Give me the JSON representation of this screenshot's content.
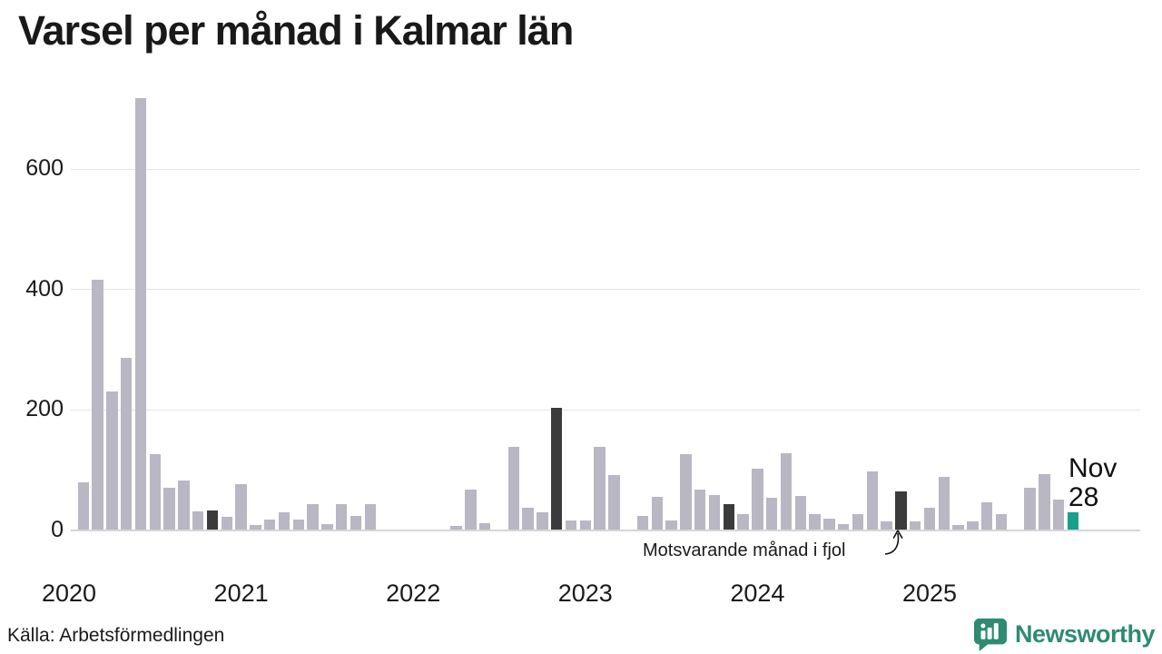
{
  "title": "Varsel per månad i Kalmar län",
  "source": "Källa: Arbetsförmedlingen",
  "brand": {
    "name": "Newsworthy",
    "logo_icon": "speech-bubble-bar-chart"
  },
  "annotation": {
    "last_year_label": "Motsvarande månad i fjol",
    "current_month_label": "Nov",
    "current_value_label": "28"
  },
  "colors": {
    "bar": "#b9b7c3",
    "bar_last_year": "#3b3b3b",
    "bar_current": "#17a08c",
    "grid": "#e4e4e4",
    "axis_line": "#d6d6d6",
    "text": "#1a1a1a",
    "brand_teal": "#2e8b72"
  },
  "chart_data": {
    "type": "bar",
    "title": "Varsel per månad i Kalmar län",
    "xlabel": "",
    "ylabel": "",
    "ylim": [
      0,
      730
    ],
    "yticks": [
      0,
      200,
      400,
      600
    ],
    "grid": true,
    "year_labels": [
      "2020",
      "2021",
      "2022",
      "2023",
      "2024",
      "2025"
    ],
    "months": [
      {
        "month": "2020-01",
        "value": 0,
        "type": "normal"
      },
      {
        "month": "2020-02",
        "value": 78,
        "type": "normal"
      },
      {
        "month": "2020-03",
        "value": 416,
        "type": "normal"
      },
      {
        "month": "2020-04",
        "value": 230,
        "type": "normal"
      },
      {
        "month": "2020-05",
        "value": 285,
        "type": "normal"
      },
      {
        "month": "2020-06",
        "value": 718,
        "type": "normal"
      },
      {
        "month": "2020-07",
        "value": 125,
        "type": "normal"
      },
      {
        "month": "2020-08",
        "value": 70,
        "type": "normal"
      },
      {
        "month": "2020-09",
        "value": 82,
        "type": "normal"
      },
      {
        "month": "2020-10",
        "value": 30,
        "type": "normal"
      },
      {
        "month": "2020-11",
        "value": 32,
        "type": "last_year"
      },
      {
        "month": "2020-12",
        "value": 21,
        "type": "normal"
      },
      {
        "month": "2021-01",
        "value": 75,
        "type": "normal"
      },
      {
        "month": "2021-02",
        "value": 8,
        "type": "normal"
      },
      {
        "month": "2021-03",
        "value": 16,
        "type": "normal"
      },
      {
        "month": "2021-04",
        "value": 28,
        "type": "normal"
      },
      {
        "month": "2021-05",
        "value": 16,
        "type": "normal"
      },
      {
        "month": "2021-06",
        "value": 42,
        "type": "normal"
      },
      {
        "month": "2021-07",
        "value": 9,
        "type": "normal"
      },
      {
        "month": "2021-08",
        "value": 42,
        "type": "normal"
      },
      {
        "month": "2021-09",
        "value": 23,
        "type": "normal"
      },
      {
        "month": "2021-10",
        "value": 43,
        "type": "normal"
      },
      {
        "month": "2021-11",
        "value": 0,
        "type": "last_year"
      },
      {
        "month": "2021-12",
        "value": 0,
        "type": "normal"
      },
      {
        "month": "2022-01",
        "value": 0,
        "type": "normal"
      },
      {
        "month": "2022-02",
        "value": 0,
        "type": "normal"
      },
      {
        "month": "2022-03",
        "value": 0,
        "type": "normal"
      },
      {
        "month": "2022-04",
        "value": 6,
        "type": "normal"
      },
      {
        "month": "2022-05",
        "value": 66,
        "type": "normal"
      },
      {
        "month": "2022-06",
        "value": 10,
        "type": "normal"
      },
      {
        "month": "2022-07",
        "value": 0,
        "type": "normal"
      },
      {
        "month": "2022-08",
        "value": 138,
        "type": "normal"
      },
      {
        "month": "2022-09",
        "value": 36,
        "type": "normal"
      },
      {
        "month": "2022-10",
        "value": 29,
        "type": "normal"
      },
      {
        "month": "2022-11",
        "value": 202,
        "type": "last_year"
      },
      {
        "month": "2022-12",
        "value": 15,
        "type": "normal"
      },
      {
        "month": "2023-01",
        "value": 15,
        "type": "normal"
      },
      {
        "month": "2023-02",
        "value": 137,
        "type": "normal"
      },
      {
        "month": "2023-03",
        "value": 90,
        "type": "normal"
      },
      {
        "month": "2023-04",
        "value": 0,
        "type": "normal"
      },
      {
        "month": "2023-05",
        "value": 23,
        "type": "normal"
      },
      {
        "month": "2023-06",
        "value": 54,
        "type": "normal"
      },
      {
        "month": "2023-07",
        "value": 15,
        "type": "normal"
      },
      {
        "month": "2023-08",
        "value": 126,
        "type": "normal"
      },
      {
        "month": "2023-09",
        "value": 66,
        "type": "normal"
      },
      {
        "month": "2023-10",
        "value": 58,
        "type": "normal"
      },
      {
        "month": "2023-11",
        "value": 43,
        "type": "last_year"
      },
      {
        "month": "2023-12",
        "value": 26,
        "type": "normal"
      },
      {
        "month": "2024-01",
        "value": 101,
        "type": "normal"
      },
      {
        "month": "2024-02",
        "value": 53,
        "type": "normal"
      },
      {
        "month": "2024-03",
        "value": 127,
        "type": "normal"
      },
      {
        "month": "2024-04",
        "value": 56,
        "type": "normal"
      },
      {
        "month": "2024-05",
        "value": 25,
        "type": "normal"
      },
      {
        "month": "2024-06",
        "value": 18,
        "type": "normal"
      },
      {
        "month": "2024-07",
        "value": 9,
        "type": "normal"
      },
      {
        "month": "2024-08",
        "value": 26,
        "type": "normal"
      },
      {
        "month": "2024-09",
        "value": 96,
        "type": "normal"
      },
      {
        "month": "2024-10",
        "value": 14,
        "type": "normal"
      },
      {
        "month": "2024-11",
        "value": 64,
        "type": "last_year"
      },
      {
        "month": "2024-12",
        "value": 14,
        "type": "normal"
      },
      {
        "month": "2025-01",
        "value": 37,
        "type": "normal"
      },
      {
        "month": "2025-02",
        "value": 88,
        "type": "normal"
      },
      {
        "month": "2025-03",
        "value": 8,
        "type": "normal"
      },
      {
        "month": "2025-04",
        "value": 14,
        "type": "normal"
      },
      {
        "month": "2025-05",
        "value": 46,
        "type": "normal"
      },
      {
        "month": "2025-06",
        "value": 25,
        "type": "normal"
      },
      {
        "month": "2025-07",
        "value": 0,
        "type": "normal"
      },
      {
        "month": "2025-08",
        "value": 70,
        "type": "normal"
      },
      {
        "month": "2025-09",
        "value": 92,
        "type": "normal"
      },
      {
        "month": "2025-10",
        "value": 50,
        "type": "normal"
      },
      {
        "month": "2025-11",
        "value": 28,
        "type": "current"
      }
    ]
  }
}
